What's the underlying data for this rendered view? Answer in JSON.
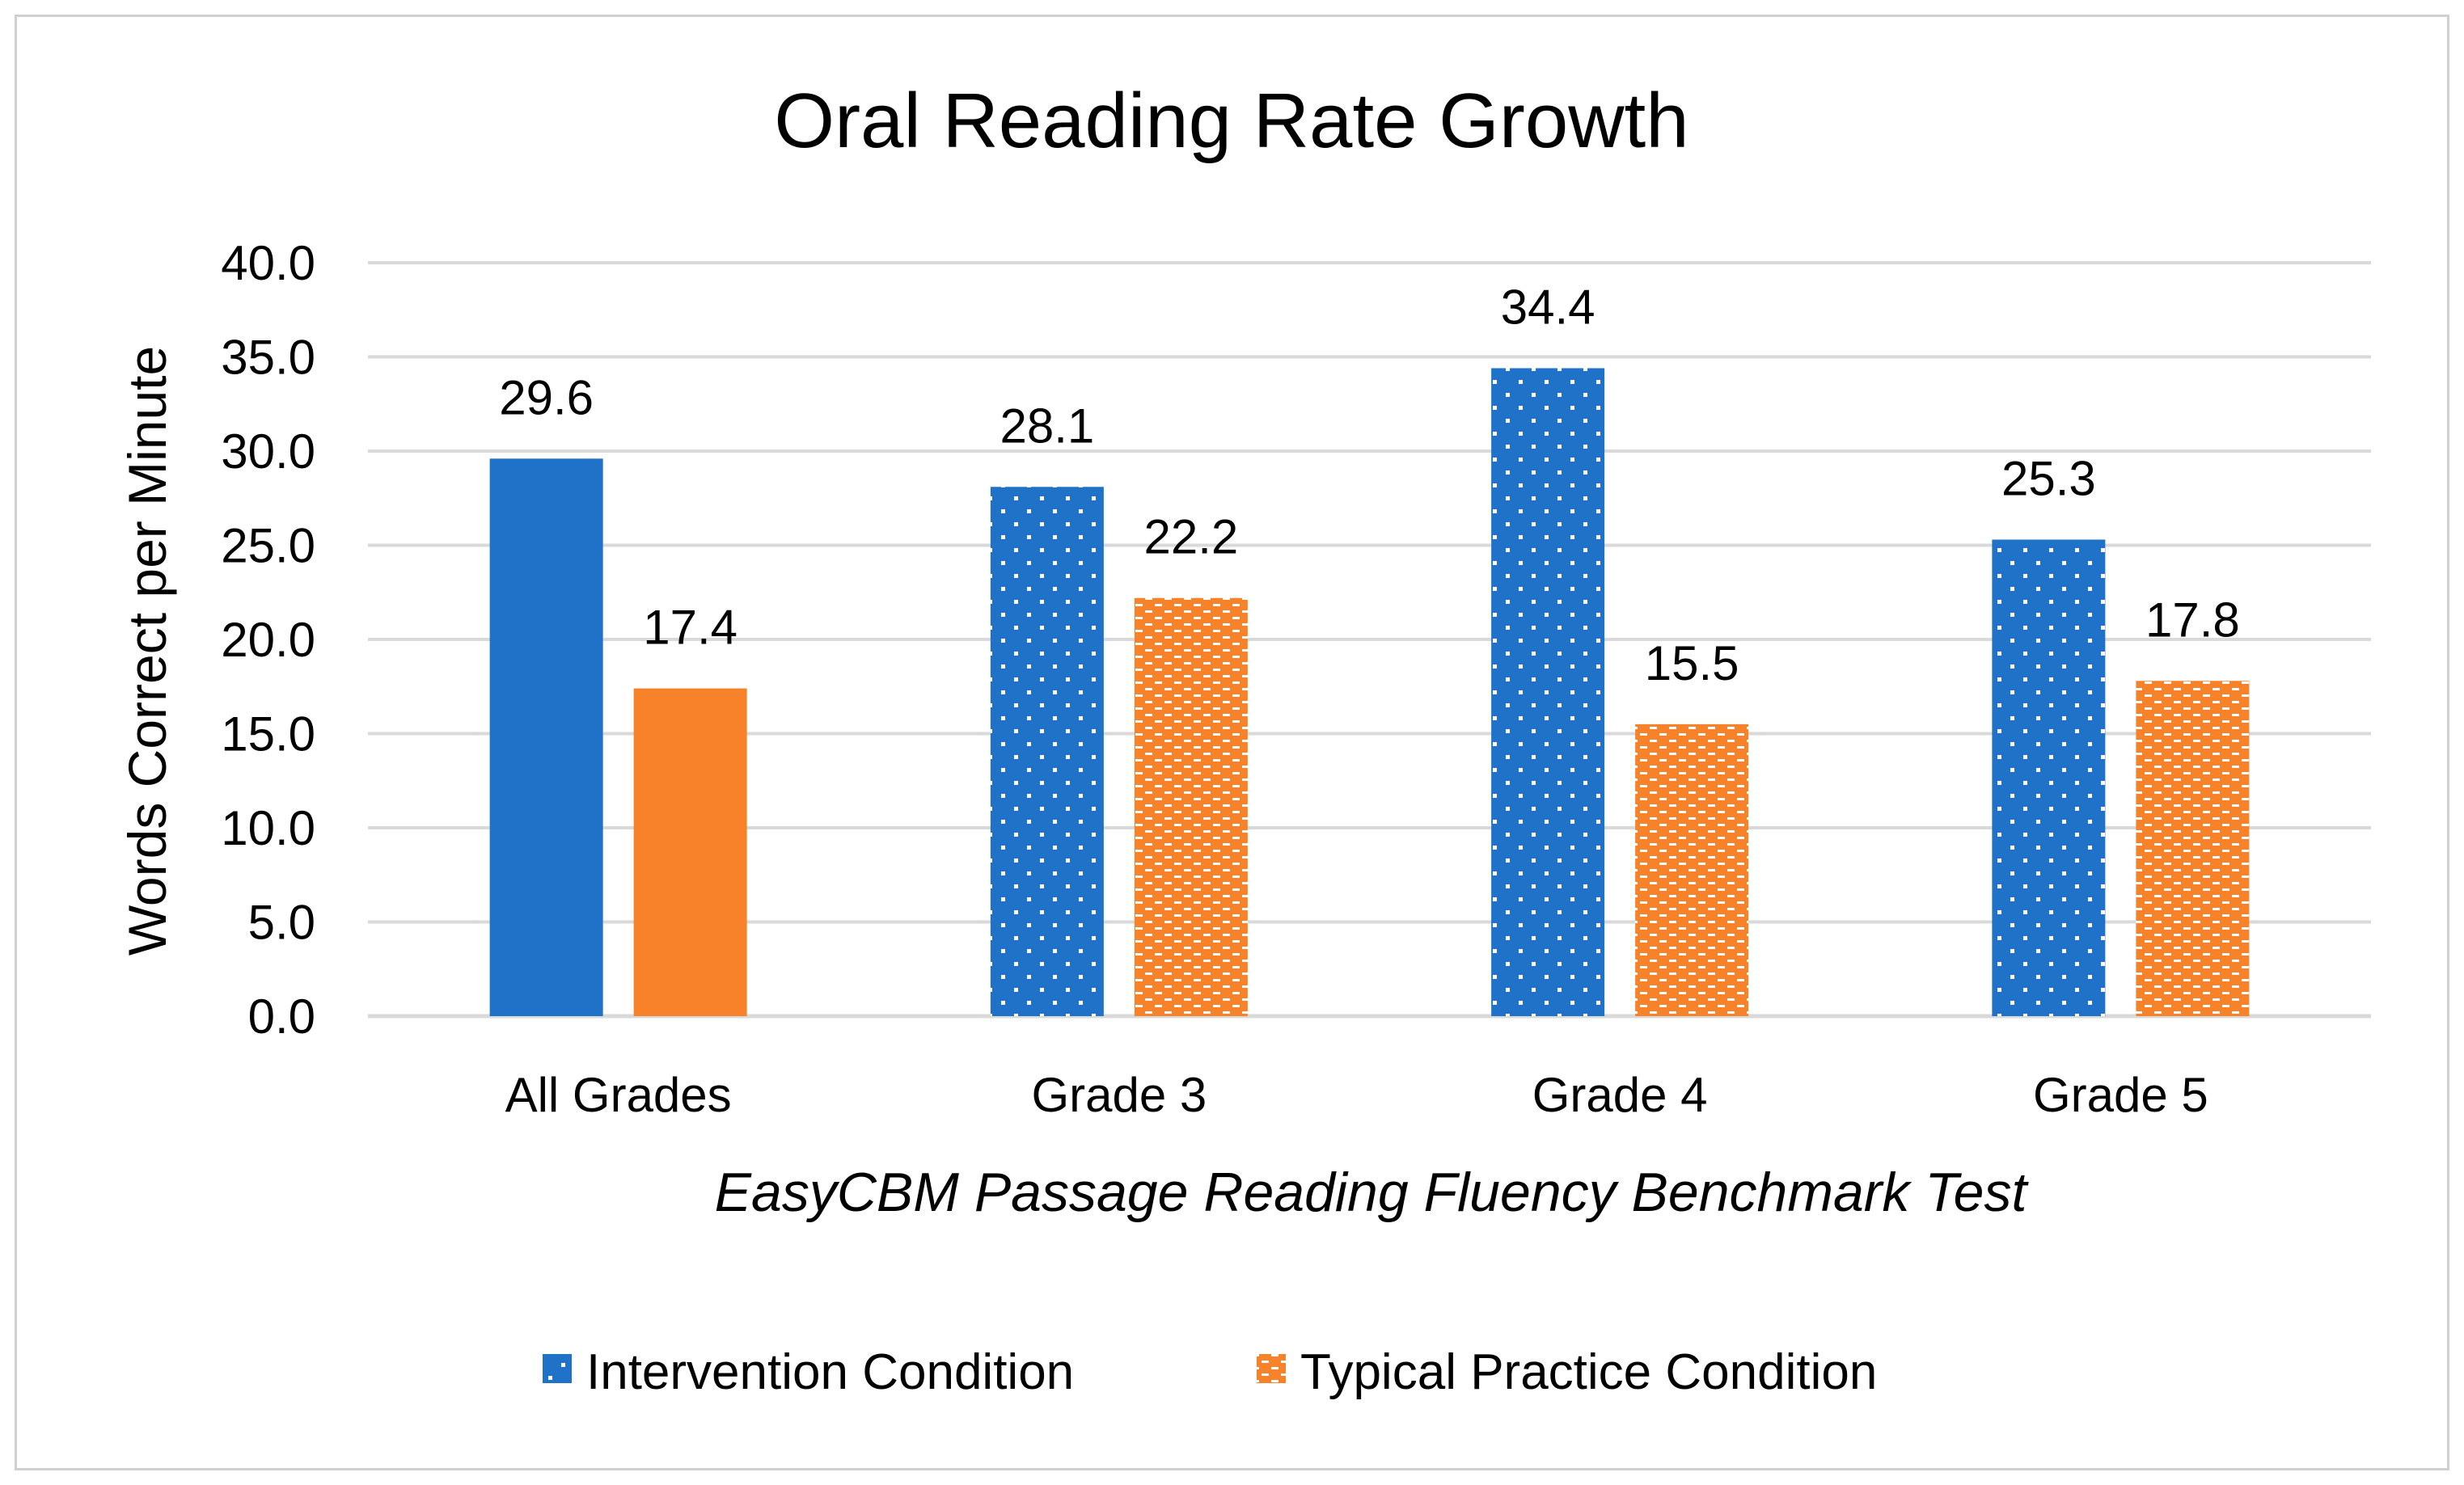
{
  "chart_data": {
    "type": "bar",
    "title": "Oral Reading Rate Growth",
    "xlabel": "EasyCBM Passage Reading Fluency Benchmark Test",
    "ylabel": "Words Correct per Minute",
    "categories": [
      "All Grades",
      "Grade 3",
      "Grade 4",
      "Grade 5"
    ],
    "series": [
      {
        "name": "Intervention Condition",
        "values": [
          29.6,
          28.1,
          34.4,
          25.3
        ],
        "color": "#1f72c8"
      },
      {
        "name": "Typical Practice Condition",
        "values": [
          17.4,
          22.2,
          15.5,
          17.8
        ],
        "color": "#f8822a"
      }
    ],
    "data_labels": [
      [
        "29.6",
        "28.1",
        "34.4",
        "25.3"
      ],
      [
        "17.4",
        "22.2",
        "15.5",
        "17.8"
      ]
    ],
    "patterned": [
      [
        false,
        true,
        true,
        true
      ],
      [
        false,
        true,
        true,
        true
      ]
    ],
    "ylim": [
      0,
      40
    ],
    "yticks": [
      "0.0",
      "5.0",
      "10.0",
      "15.0",
      "20.0",
      "25.0",
      "30.0",
      "35.0",
      "40.0"
    ],
    "grid": true,
    "legend": "bottom-center",
    "gridline_color": "#d9d9d9"
  }
}
